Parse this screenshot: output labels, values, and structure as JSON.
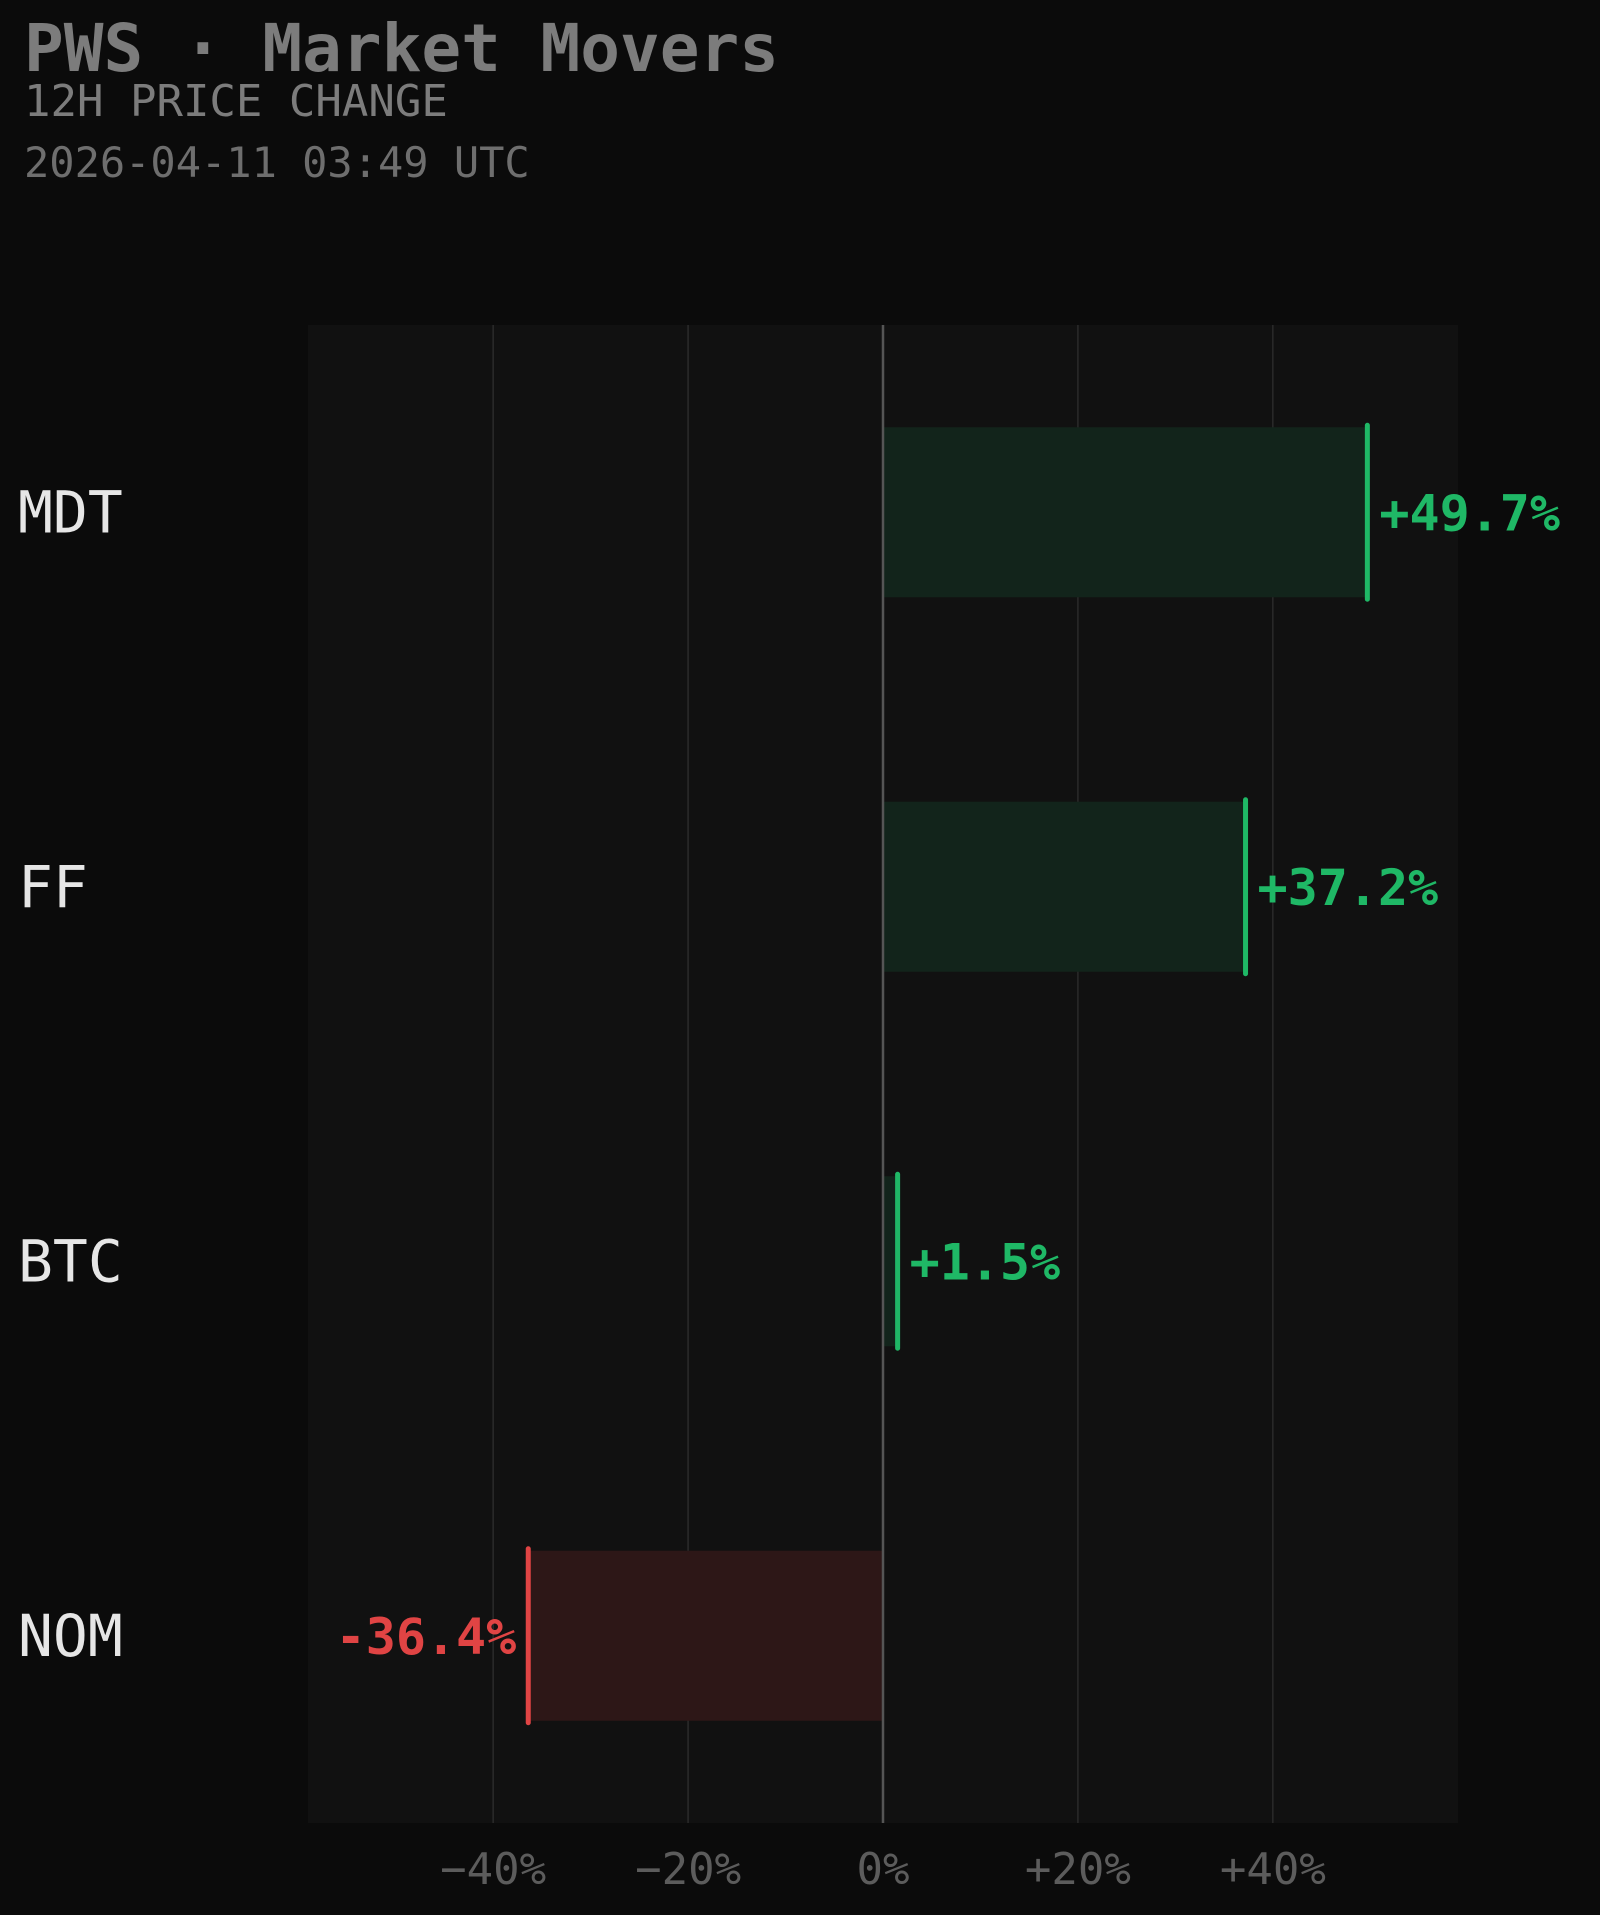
{
  "header": {
    "title": "PWS · Market Movers",
    "subtitle": "12H PRICE CHANGE",
    "timestamp": "2026-04-11 03:49 UTC"
  },
  "colors": {
    "background": "#0b0b0b",
    "plot_background": "#111111",
    "positive": "#1fb866",
    "positive_fill": "#12241b",
    "negative": "#e04444",
    "negative_fill": "#2d1717",
    "grid": "#2a2a2a",
    "zero_line": "#555555"
  },
  "chart_data": {
    "type": "bar",
    "orientation": "horizontal",
    "categories": [
      "MDT",
      "FF",
      "BTC",
      "NOM"
    ],
    "values": [
      49.7,
      37.2,
      1.5,
      -36.4
    ],
    "value_labels": [
      "+49.7%",
      "+37.2%",
      "+1.5%",
      "-36.4%"
    ],
    "xlim": [
      -59,
      59
    ],
    "xticks": [
      -40,
      -20,
      0,
      20,
      40
    ],
    "xtick_labels": [
      "−40%",
      "−20%",
      "0%",
      "+20%",
      "+40%"
    ],
    "grid": "vertical",
    "legend": "none"
  }
}
